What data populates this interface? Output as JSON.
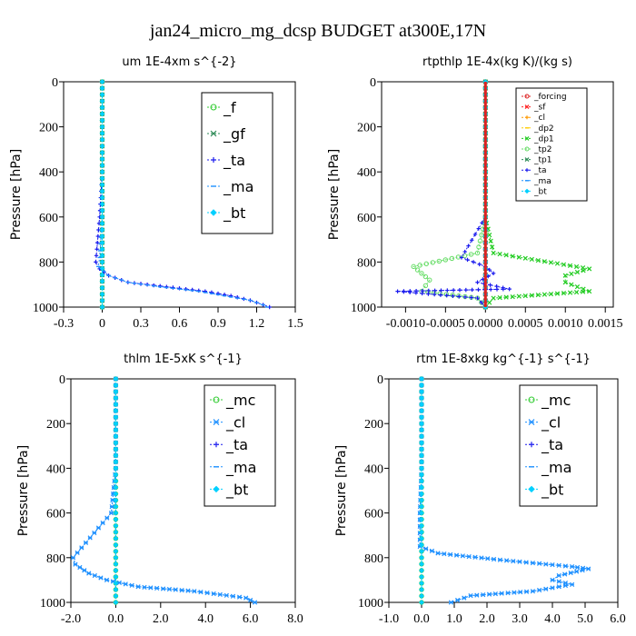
{
  "figure": {
    "title": "jan24_micro_mg_dcsp  BUDGET at300E,17N"
  },
  "chart_data": [
    {
      "type": "line",
      "title": "um  1E-4xm s^{-2}",
      "ylabel": "Pressure [hPa]",
      "xlim": [
        -0.3,
        1.5
      ],
      "ylim": [
        0,
        1000
      ],
      "xticks": [
        "-0.3",
        "0",
        "0.3",
        "0.6",
        "0.9",
        "1.2",
        "1.5"
      ],
      "xtick_values": [
        -0.3,
        0,
        0.3,
        0.6,
        0.9,
        1.2,
        1.5
      ],
      "yticks": [
        "0",
        "200",
        "400",
        "600",
        "800",
        "1000"
      ],
      "ytick_values": [
        0,
        200,
        400,
        600,
        800,
        1000
      ],
      "legend_size": "large",
      "series": [
        {
          "name": "_f",
          "color": "#33cc33",
          "marker": "circle-open",
          "x": [
            0.0,
            0.0,
            0.0,
            0.0,
            0.0,
            0.0
          ],
          "y": [
            0,
            200,
            400,
            600,
            800,
            1000
          ]
        },
        {
          "name": "_gf",
          "color": "#2e8b57",
          "marker": "x",
          "x": [
            0.0,
            0.0,
            0.0,
            0.0,
            0.0,
            0.0
          ],
          "y": [
            0,
            200,
            400,
            600,
            800,
            1000
          ]
        },
        {
          "name": "_ta",
          "color": "#1a1aee",
          "marker": "plus",
          "x": [
            0.0,
            0.0,
            0.0,
            -0.02,
            -0.05,
            -0.02,
            0.05,
            0.2,
            0.5,
            0.8,
            1.0,
            1.15,
            1.3
          ],
          "y": [
            0,
            200,
            400,
            600,
            800,
            830,
            860,
            890,
            910,
            930,
            950,
            970,
            1000
          ]
        },
        {
          "name": "_ma",
          "color": "#1e90ff",
          "marker": "dash",
          "x": [
            0.0,
            0.0,
            0.0,
            0.0,
            -0.02,
            -0.03,
            0.05,
            0.2,
            0.45,
            0.75,
            0.95,
            1.15,
            1.25,
            1.28
          ],
          "y": [
            0,
            200,
            400,
            600,
            780,
            820,
            860,
            890,
            910,
            930,
            950,
            970,
            990,
            1000
          ]
        },
        {
          "name": "_bt",
          "color": "#00d0ff",
          "marker": "diamond",
          "x": [
            0.0,
            0.0,
            0.0,
            0.0,
            0.0,
            0.0
          ],
          "y": [
            0,
            200,
            400,
            600,
            800,
            1000
          ]
        }
      ]
    },
    {
      "type": "line",
      "title": "rtpthlp  1E-4x(kg K)/(kg s)",
      "ylabel": "Pressure [hPa]",
      "xlim": [
        -0.0013,
        0.0016
      ],
      "ylim": [
        0,
        1000
      ],
      "xticks": [
        "-0.0010",
        "-0.0005",
        "0.0000",
        "0.0005",
        "0.0010",
        "0.0015"
      ],
      "xtick_values": [
        -0.001,
        -0.0005,
        0.0,
        0.0005,
        0.001,
        0.0015
      ],
      "yticks": [
        "0",
        "200",
        "400",
        "600",
        "800",
        "1000"
      ],
      "ytick_values": [
        0,
        200,
        400,
        600,
        800,
        1000
      ],
      "legend_size": "small",
      "series": [
        {
          "name": "_forcing",
          "color": "#dd2222",
          "marker": "circle-open",
          "x": [
            0,
            0,
            0,
            0,
            0,
            0
          ],
          "y": [
            0,
            200,
            400,
            600,
            800,
            1000
          ]
        },
        {
          "name": "_sf",
          "color": "#ff2222",
          "marker": "x",
          "x": [
            0,
            0,
            0,
            0,
            0,
            0
          ],
          "y": [
            0,
            200,
            400,
            600,
            800,
            1000
          ]
        },
        {
          "name": "_cl",
          "color": "#ff9900",
          "marker": "plus",
          "x": [
            0,
            0,
            0,
            0,
            0,
            0
          ],
          "y": [
            0,
            200,
            400,
            600,
            800,
            1000
          ]
        },
        {
          "name": "_dp2",
          "color": "#ffcc00",
          "marker": "dash",
          "x": [
            0,
            0,
            0,
            0,
            0,
            0
          ],
          "y": [
            0,
            200,
            400,
            600,
            800,
            1000
          ]
        },
        {
          "name": "_dp1",
          "color": "#22cc22",
          "marker": "x",
          "x": [
            0.0,
            0.0,
            0.0,
            0.0,
            0.0001,
            0.0013,
            0.001,
            0.001,
            0.0013,
            0.0001,
            0.0
          ],
          "y": [
            0,
            200,
            400,
            600,
            760,
            830,
            860,
            890,
            930,
            960,
            1000
          ]
        },
        {
          "name": "_tp2",
          "color": "#66dd66",
          "marker": "circle-open",
          "x": [
            0.0,
            0.0,
            0.0,
            0.0,
            -0.0001,
            -0.0009,
            -0.0008,
            -0.0007,
            -0.0008,
            -0.0001,
            0.0
          ],
          "y": [
            0,
            200,
            400,
            600,
            760,
            820,
            850,
            880,
            930,
            960,
            1000
          ]
        },
        {
          "name": "_tp1",
          "color": "#2e8b57",
          "marker": "x",
          "x": [
            0,
            0,
            0,
            0,
            0,
            0
          ],
          "y": [
            0,
            200,
            400,
            600,
            800,
            1000
          ]
        },
        {
          "name": "_ta",
          "color": "#1a1aee",
          "marker": "plus",
          "x": [
            0.0,
            0.0,
            0.0,
            0.0,
            -0.0003,
            0.0,
            0.0001,
            -0.0001,
            0.0003,
            -0.0011,
            -0.0001,
            0.0
          ],
          "y": [
            0,
            200,
            400,
            600,
            780,
            820,
            850,
            890,
            920,
            930,
            960,
            1000
          ]
        },
        {
          "name": "_ma",
          "color": "#1e90ff",
          "marker": "dash",
          "x": [
            0,
            0,
            0,
            0,
            0,
            0
          ],
          "y": [
            0,
            200,
            400,
            600,
            800,
            1000
          ]
        },
        {
          "name": "_bt",
          "color": "#00d0ff",
          "marker": "diamond",
          "x": [
            0,
            0,
            0,
            0,
            0,
            0
          ],
          "y": [
            0,
            200,
            400,
            600,
            800,
            1000
          ]
        }
      ]
    },
    {
      "type": "line",
      "title": "thlm  1E-5xK s^{-1}",
      "ylabel": "Pressure [hPa]",
      "xlim": [
        -2.0,
        8.0
      ],
      "ylim": [
        0,
        1000
      ],
      "xticks": [
        "-2.0",
        "0.0",
        "2.0",
        "4.0",
        "6.0",
        "8.0"
      ],
      "xtick_values": [
        -2,
        0,
        2,
        4,
        6,
        8
      ],
      "yticks": [
        "0",
        "200",
        "400",
        "600",
        "800",
        "1000"
      ],
      "ytick_values": [
        0,
        200,
        400,
        600,
        800,
        1000
      ],
      "legend_size": "large",
      "series": [
        {
          "name": "_mc",
          "color": "#33cc33",
          "marker": "circle-open",
          "x": [
            0.0,
            0.0,
            0.0,
            0.0,
            0.0,
            0.0
          ],
          "y": [
            0,
            200,
            400,
            600,
            800,
            1000
          ]
        },
        {
          "name": "_cl",
          "color": "#1e90ff",
          "marker": "x",
          "x": [
            0.0,
            0.0,
            0.0,
            -0.2,
            -1.9,
            -1.8,
            -1.2,
            -0.4,
            1.0,
            3.5,
            5.8,
            6.2
          ],
          "y": [
            0,
            200,
            400,
            600,
            800,
            830,
            870,
            900,
            930,
            950,
            980,
            1000
          ]
        },
        {
          "name": "_ta",
          "color": "#1a1aee",
          "marker": "plus",
          "x": [
            0.0,
            0.0,
            0.0,
            0.0,
            0.0,
            0.0
          ],
          "y": [
            0,
            200,
            400,
            600,
            800,
            1000
          ]
        },
        {
          "name": "_ma",
          "color": "#1e90ff",
          "marker": "dash",
          "x": [
            0.0,
            0.0,
            0.0,
            -0.2,
            -1.9,
            -1.8,
            -1.2,
            -0.4,
            1.0,
            3.5,
            5.8,
            6.2
          ],
          "y": [
            0,
            200,
            400,
            600,
            800,
            830,
            870,
            900,
            930,
            950,
            980,
            1000
          ]
        },
        {
          "name": "_bt",
          "color": "#00d0ff",
          "marker": "diamond",
          "x": [
            0.0,
            0.0,
            0.0,
            0.0,
            0.0,
            0.0
          ],
          "y": [
            0,
            200,
            400,
            600,
            800,
            1000
          ]
        }
      ]
    },
    {
      "type": "line",
      "title": "rtm  1E-8xkg kg^{-1} s^{-1}",
      "ylabel": "Pressure [hPa]",
      "xlim": [
        -1.0,
        6.0
      ],
      "ylim": [
        0,
        1000
      ],
      "xticks": [
        "-1.0",
        "0.0",
        "1.0",
        "2.0",
        "3.0",
        "4.0",
        "5.0",
        "6.0"
      ],
      "xtick_values": [
        -1,
        0,
        1,
        2,
        3,
        4,
        5,
        6
      ],
      "yticks": [
        "0",
        "200",
        "400",
        "600",
        "800",
        "1000"
      ],
      "ytick_values": [
        0,
        200,
        400,
        600,
        800,
        1000
      ],
      "legend_size": "large",
      "series": [
        {
          "name": "_mc",
          "color": "#33cc33",
          "marker": "circle-open",
          "x": [
            0.0,
            0.0,
            0.0,
            0.0,
            0.0,
            0.0
          ],
          "y": [
            0,
            200,
            400,
            600,
            800,
            1000
          ]
        },
        {
          "name": "_cl",
          "color": "#1e90ff",
          "marker": "x",
          "x": [
            0.0,
            0.0,
            0.0,
            -0.05,
            -0.05,
            0.5,
            2.4,
            4.6,
            5.1,
            4.2,
            4.0,
            4.6,
            3.4,
            1.5,
            0.9
          ],
          "y": [
            0,
            200,
            400,
            600,
            750,
            780,
            810,
            840,
            850,
            880,
            900,
            920,
            950,
            970,
            1000
          ]
        },
        {
          "name": "_ta",
          "color": "#1a1aee",
          "marker": "plus",
          "x": [
            0.0,
            0.0,
            0.0,
            0.0,
            0.0,
            0.0
          ],
          "y": [
            0,
            200,
            400,
            600,
            800,
            1000
          ]
        },
        {
          "name": "_ma",
          "color": "#1e90ff",
          "marker": "dash",
          "x": [
            0.0,
            0.0,
            0.0,
            -0.05,
            -0.05,
            0.5,
            2.4,
            4.6,
            5.1,
            4.2,
            4.0,
            4.6,
            3.4,
            1.5,
            0.9
          ],
          "y": [
            0,
            200,
            400,
            600,
            750,
            780,
            810,
            840,
            850,
            880,
            900,
            920,
            950,
            970,
            1000
          ]
        },
        {
          "name": "_bt",
          "color": "#00d0ff",
          "marker": "diamond",
          "x": [
            0.0,
            0.0,
            0.0,
            0.0,
            0.0,
            0.0
          ],
          "y": [
            0,
            200,
            400,
            600,
            800,
            1000
          ]
        }
      ]
    }
  ]
}
